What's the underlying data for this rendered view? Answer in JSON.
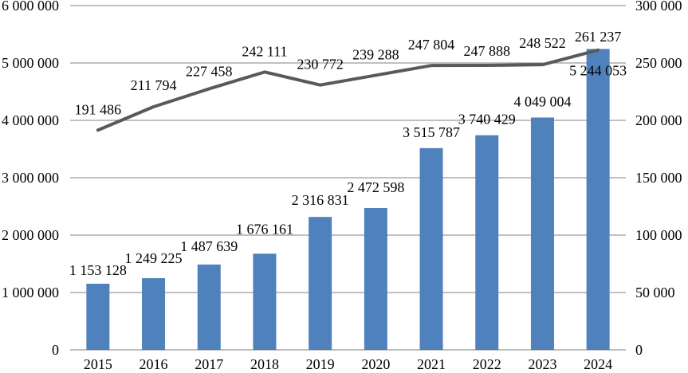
{
  "chart_data": {
    "type": "bar+line",
    "title": "",
    "xlabel": "",
    "ylabel": "",
    "legend": "none",
    "grid": true,
    "categories": [
      "2015",
      "2016",
      "2017",
      "2018",
      "2019",
      "2020",
      "2021",
      "2022",
      "2023",
      "2024"
    ],
    "series": [
      {
        "name": "bar-series",
        "type": "bar",
        "axis": "left",
        "color": "#4F81BD",
        "values": [
          1153128,
          1249225,
          1487639,
          1676161,
          2316831,
          2472598,
          3515787,
          3740429,
          4049004,
          5244053
        ],
        "labels": [
          "1 153 128",
          "1 249 225",
          "1 487 639",
          "1 676 161",
          "2 316 831",
          "2 472 598",
          "3 515 787",
          "3 740 429",
          "4 049 004",
          "5 244 053"
        ],
        "label_dy": [
          -17,
          -25,
          -23,
          -31,
          -21,
          -26,
          -20,
          -20,
          -20,
          27
        ]
      },
      {
        "name": "line-series",
        "type": "line",
        "axis": "right",
        "color": "#595959",
        "values": [
          191486,
          211794,
          227458,
          242111,
          230772,
          239288,
          247804,
          247888,
          248522,
          261237
        ],
        "labels": [
          "191 486",
          "211 794",
          "227 458",
          "242 111",
          "230 772",
          "239 288",
          "247 804",
          "247 888",
          "248 522",
          "261 237"
        ],
        "label_dy": [
          -26,
          -27,
          -22,
          -26,
          -26,
          -26,
          -26,
          -18,
          -27,
          -17
        ]
      }
    ],
    "axes": {
      "left": {
        "min": 0,
        "max": 6000000,
        "step": 1000000,
        "ticks": [
          "0",
          "1 000 000",
          "2 000 000",
          "3 000 000",
          "4 000 000",
          "5 000 000",
          "6 000 000"
        ]
      },
      "right": {
        "min": 0,
        "max": 300000,
        "step": 50000,
        "ticks": [
          "0",
          "50 000",
          "100 000",
          "150 000",
          "200 000",
          "250 000",
          "300 000"
        ]
      }
    },
    "colors": {
      "bar": "#4F81BD",
      "line": "#595959",
      "grid": "#808080",
      "axis": "#808080",
      "text": "#000000",
      "background": "#FFFFFF"
    }
  }
}
